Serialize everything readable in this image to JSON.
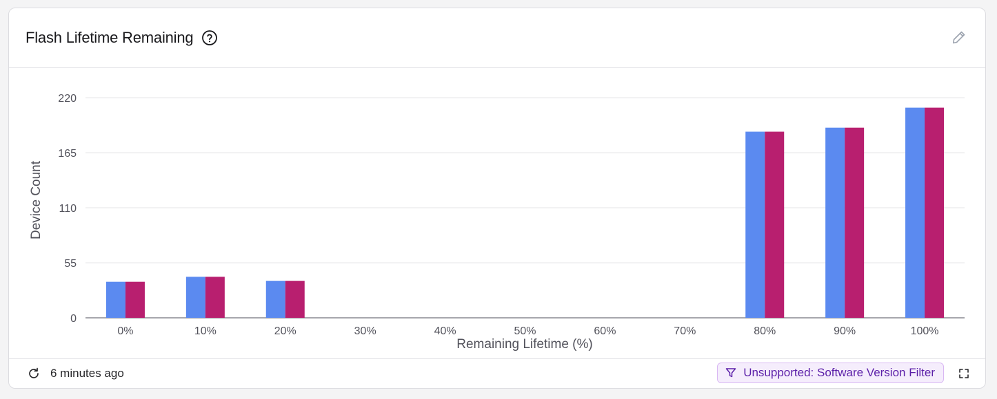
{
  "header": {
    "title": "Flash Lifetime Remaining"
  },
  "icons": {
    "help": "question-circle-icon",
    "edit": "pencil-icon",
    "refresh": "refresh-icon",
    "filter": "funnel-icon",
    "expand": "expand-icon"
  },
  "footer": {
    "updated": "6 minutes ago",
    "filter_label": "Unsupported: Software Version Filter"
  },
  "colors": {
    "series_a": "#5b8af0",
    "series_b": "#b81f6f",
    "grid": "#e4e4e7",
    "axis_text": "#52525b",
    "badge_text": "#5b1fa8"
  },
  "chart_data": {
    "type": "bar",
    "title": "",
    "xlabel": "Remaining Lifetime (%)",
    "ylabel": "Device Count",
    "categories": [
      "0%",
      "10%",
      "20%",
      "30%",
      "40%",
      "50%",
      "60%",
      "70%",
      "80%",
      "90%",
      "100%"
    ],
    "series": [
      {
        "values": [
          36,
          41,
          37,
          0,
          0,
          0,
          0,
          0,
          186,
          190,
          210
        ]
      },
      {
        "values": [
          36,
          41,
          37,
          0,
          0,
          0,
          0,
          0,
          186,
          190,
          210
        ]
      }
    ],
    "yticks": [
      "0",
      "55",
      "110",
      "165",
      "220"
    ],
    "ylim": [
      0,
      220
    ],
    "grid": true,
    "legend": "none"
  }
}
